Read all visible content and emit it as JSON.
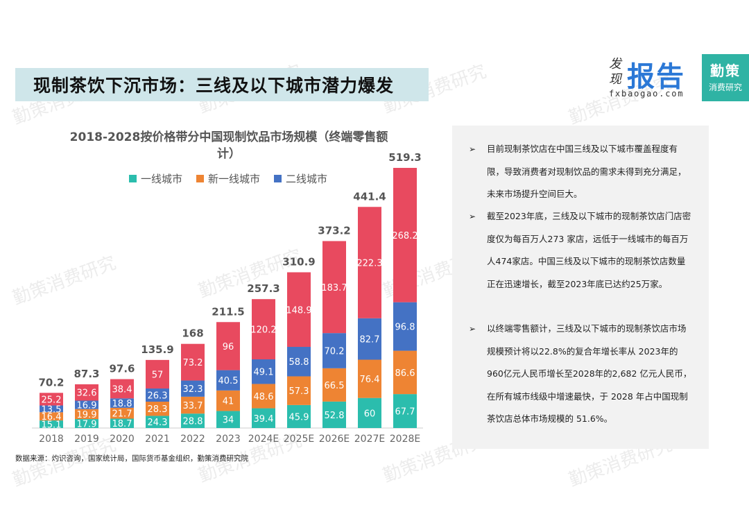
{
  "header": {
    "title": "现制茶饮下沉市场：三线及以下城市潜力爆发",
    "logo_fx_small": "发现",
    "logo_fx_big": "报告",
    "logo_fx_url": "fxbaogao.com",
    "logo_qc_line1": "勤策",
    "logo_qc_line2": "消费研究"
  },
  "watermark": "勤策消费研究",
  "chart_data": {
    "type": "bar",
    "stacked": true,
    "title": "2018-2028按价格带分中国现制饮品市场规模（终端零售额计）",
    "categories": [
      "2018",
      "2019",
      "2020",
      "2021",
      "2022",
      "2023",
      "2024E",
      "2025E",
      "2026E",
      "2027E",
      "2028E"
    ],
    "series": [
      {
        "name": "一线城市",
        "color": "#2bbdad",
        "values": [
          15.1,
          17.9,
          18.7,
          24.3,
          28.8,
          34,
          39.4,
          45.9,
          52.8,
          60,
          67.7
        ]
      },
      {
        "name": "新一线城市",
        "color": "#ee8433",
        "values": [
          16.4,
          19.9,
          21.7,
          28.3,
          33.7,
          41,
          48.6,
          57.3,
          66.5,
          76.4,
          86.6
        ]
      },
      {
        "name": "二线城市",
        "color": "#4472c4",
        "values": [
          13.5,
          16.9,
          18.8,
          26.3,
          32.3,
          40.5,
          49.1,
          58.8,
          70.2,
          82.7,
          96.8
        ]
      },
      {
        "name": "",
        "color": "#e84a5f",
        "values": [
          25.2,
          32.6,
          38.4,
          57,
          73.2,
          96,
          120.2,
          148.9,
          183.7,
          222.3,
          268.2
        ]
      }
    ],
    "totals": [
      70.2,
      87.3,
      97.6,
      135.9,
      168,
      211.5,
      257.3,
      310.9,
      373.2,
      441.4,
      519.3
    ],
    "legend_position": "top",
    "grid": false
  },
  "panel": {
    "bullets": [
      "目前现制茶饮店在中国三线及以下城市覆盖程度有限，导致消费者对现制饮品的需求未得到充分满足，未来市场提升空间巨大。",
      "截至2023年底，三线及以下城市的现制茶饮店门店密度仅为每百万人273 家店，远低于一线城市的每百万人474家店。中国三线及以下城市的现制茶饮店数量正在迅速增长，截至2023年底已达约25万家。",
      "以终端零售额计，三线及以下城市的现制茶饮店市场规模预计将以22.8%的复合年增长率从 2023年的960亿元人民币增长至2028年的2,682 亿元人民币，在所有城市线级中增速最快，于 2028 年占中国现制茶饮店总体市场规模的 51.6%。"
    ],
    "bullet_mark": "➢"
  },
  "source": "数据来源：灼识咨询，国家统计局，国际货币基金组织，勤策消费研究院"
}
